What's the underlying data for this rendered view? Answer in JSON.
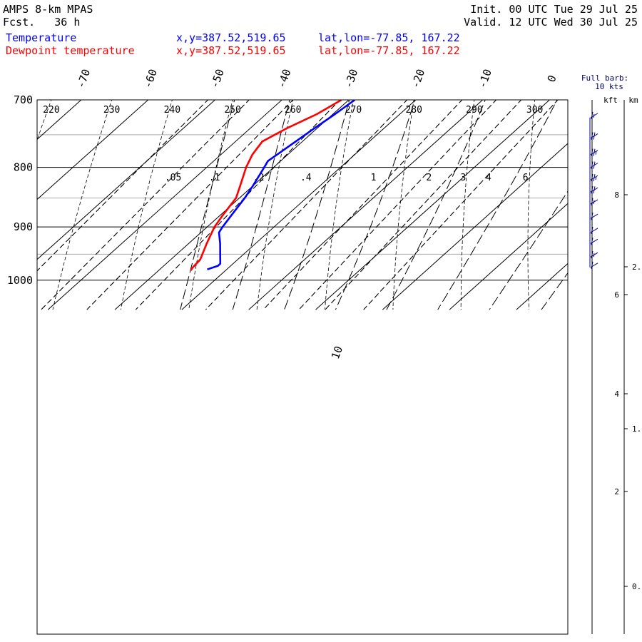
{
  "header": {
    "model": "AMPS 8-km MPAS",
    "fcst_label": "Fcst.",
    "fcst_value": "36 h",
    "init": "Init. 00 UTC Tue 29 Jul 25",
    "valid": "Valid. 12 UTC Wed 30 Jul 25"
  },
  "legend": [
    {
      "name": "Temperature",
      "xy": "x,y=387.52,519.65",
      "latlon": "lat,lon=-77.85, 167.22",
      "color": "#0000ff"
    },
    {
      "name": "Dewpoint temperature",
      "xy": "x,y=387.52,519.65",
      "latlon": "lat,lon=-77.85, 167.22",
      "color": "#ff0000"
    }
  ],
  "wind_panel": {
    "title_1": "Full barb:",
    "title_2": "10 kts",
    "unit_kft": "kft",
    "unit_km": "km"
  },
  "chart_data": {
    "type": "line",
    "chart_kind": "skew-T log-p sounding",
    "y_axis": {
      "quantity": "pressure",
      "scale": "log",
      "range": [
        1040,
        700
      ],
      "ticks": [
        700,
        800,
        900,
        1000
      ],
      "grid": [
        700,
        750,
        800,
        850,
        900,
        950,
        1000
      ]
    },
    "temperature_ticks": [
      -70,
      -60,
      -50,
      -40,
      -30,
      -20,
      -10,
      0
    ],
    "isotherm_ticks_extra": [
      10
    ],
    "potential_temperature_labels": [
      220,
      230,
      240,
      250,
      260,
      270,
      280,
      290,
      300
    ],
    "mixing_ratio_labels": [
      ".05",
      ".1",
      ".2",
      ".4",
      "1",
      "2",
      "3",
      "4",
      "6"
    ],
    "series": [
      {
        "name": "Temperature",
        "color": "#0000ff",
        "points": [
          {
            "p": 700,
            "t": -29.1
          },
          {
            "p": 720,
            "t": -29.7
          },
          {
            "p": 740,
            "t": -30.4
          },
          {
            "p": 760,
            "t": -31.0
          },
          {
            "p": 790,
            "t": -31.9
          },
          {
            "p": 800,
            "t": -31.4
          },
          {
            "p": 830,
            "t": -30.0
          },
          {
            "p": 850,
            "t": -29.2
          },
          {
            "p": 880,
            "t": -28.3
          },
          {
            "p": 900,
            "t": -27.7
          },
          {
            "p": 910,
            "t": -27.3
          },
          {
            "p": 930,
            "t": -25.3
          },
          {
            "p": 950,
            "t": -23.5
          },
          {
            "p": 968,
            "t": -21.9
          },
          {
            "p": 972,
            "t": -21.9
          },
          {
            "p": 979,
            "t": -22.9
          }
        ]
      },
      {
        "name": "Dewpoint temperature",
        "color": "#ff0000",
        "points": [
          {
            "p": 700,
            "t": -31.1
          },
          {
            "p": 720,
            "t": -32.4
          },
          {
            "p": 740,
            "t": -34.5
          },
          {
            "p": 760,
            "t": -36.0
          },
          {
            "p": 780,
            "t": -35.3
          },
          {
            "p": 800,
            "t": -34.1
          },
          {
            "p": 830,
            "t": -31.9
          },
          {
            "p": 850,
            "t": -30.5
          },
          {
            "p": 880,
            "t": -29.6
          },
          {
            "p": 900,
            "t": -28.9
          },
          {
            "p": 930,
            "t": -27.3
          },
          {
            "p": 960,
            "t": -25.6
          },
          {
            "p": 975,
            "t": -25.4
          },
          {
            "p": 981,
            "t": -25.2
          }
        ]
      }
    ],
    "height_ticks_kft": [
      2,
      4,
      6,
      8
    ],
    "height_ticks_km": [
      "0",
      "1",
      "2"
    ],
    "height_ticks_kft_values": [
      2,
      4,
      6,
      8
    ],
    "height_ticks_km_values": [
      0,
      1,
      2
    ],
    "wind_barbs": [
      {
        "p": 975,
        "barbs": 1.0
      },
      {
        "p": 955,
        "barbs": 1.5
      },
      {
        "p": 930,
        "barbs": 1.0
      },
      {
        "p": 910,
        "barbs": 1.0
      },
      {
        "p": 885,
        "barbs": 1.0
      },
      {
        "p": 860,
        "barbs": 1.5
      },
      {
        "p": 840,
        "barbs": 2.0
      },
      {
        "p": 820,
        "barbs": 2.5
      },
      {
        "p": 800,
        "barbs": 2.0
      },
      {
        "p": 780,
        "barbs": 2.5
      },
      {
        "p": 755,
        "barbs": 2.0
      },
      {
        "p": 725,
        "barbs": 1.5
      }
    ]
  }
}
